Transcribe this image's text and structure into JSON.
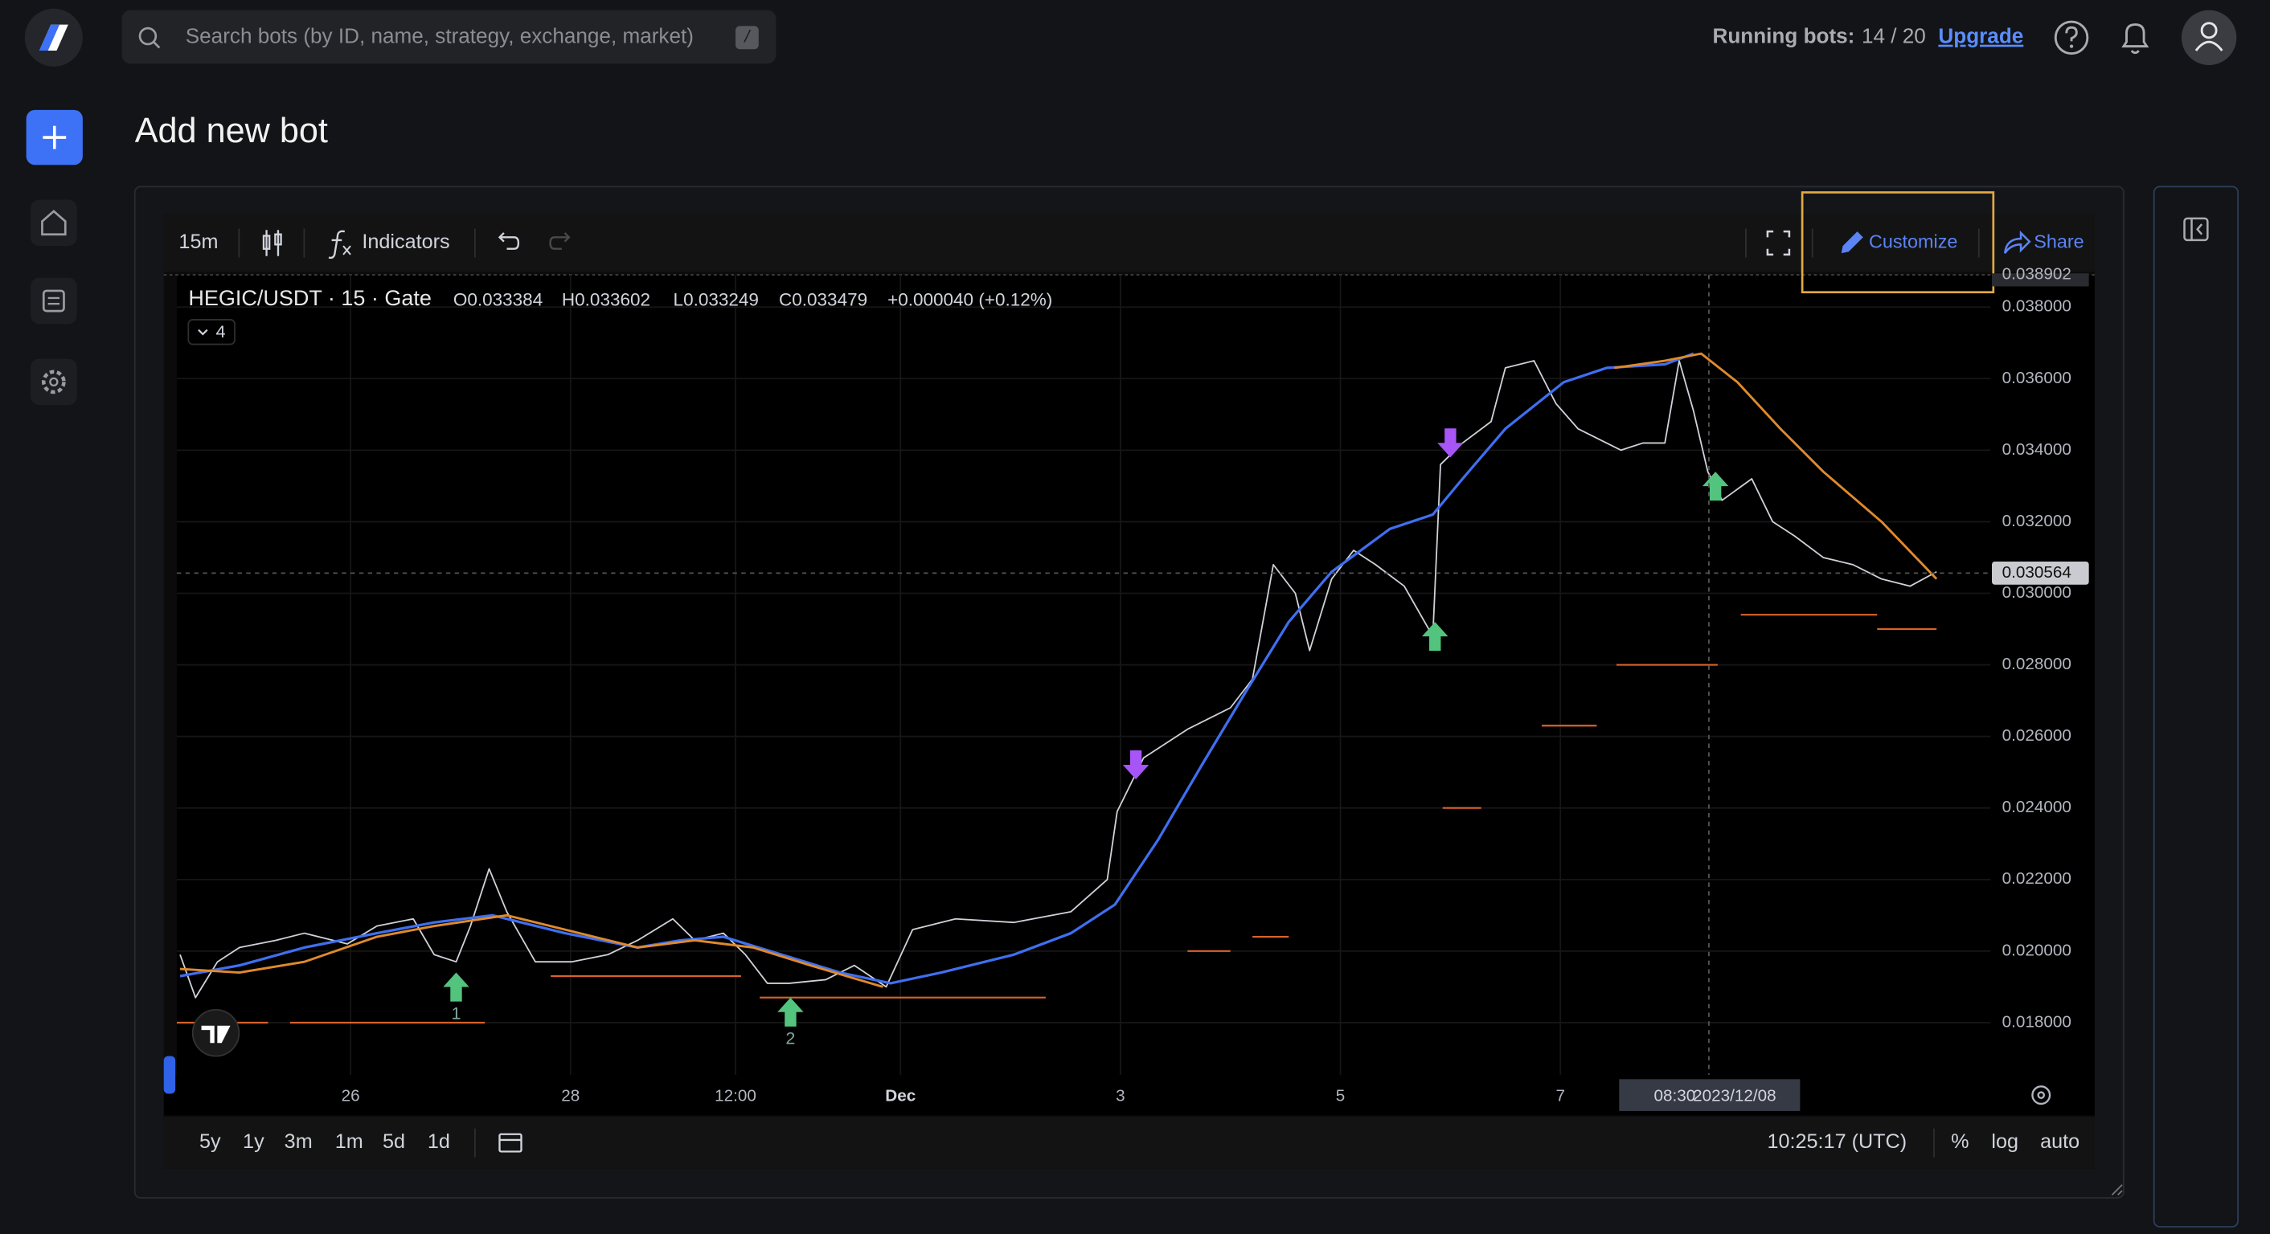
{
  "header": {
    "search_placeholder": "Search bots (by ID, name, strategy, exchange, market)",
    "search_shortcut": "/",
    "running_label": "Running bots:",
    "running_value": "14 / 20",
    "upgrade": "Upgrade"
  },
  "page_title": "Add new bot",
  "toolbar": {
    "interval": "15m",
    "indicators": "Indicators",
    "customize": "Customize",
    "share": "Share"
  },
  "legend": {
    "symbol": "HEGIC/USDT · 15 · Gate",
    "open": "O0.033384",
    "high": "H0.033602",
    "low": "L0.033249",
    "close": "C0.033479",
    "change": "+0.000040 (+0.12%)",
    "indicator_count": "4"
  },
  "chart": {
    "type": "line",
    "grid": true,
    "xlim": [
      -1.58,
      14.91
    ],
    "ylim": [
      0.01654,
      0.0389
    ],
    "xticks": [
      {
        "value": 0,
        "label": "26"
      },
      {
        "value": 2,
        "label": "28"
      },
      {
        "value": 3.5,
        "label": "12:00"
      },
      {
        "value": 5,
        "label": "Dec"
      },
      {
        "value": 7,
        "label": "3"
      },
      {
        "value": 9,
        "label": "5"
      },
      {
        "value": 11,
        "label": "7"
      }
    ],
    "yticks": [
      {
        "value": 0.018,
        "label": "0.018000"
      },
      {
        "value": 0.02,
        "label": "0.020000"
      },
      {
        "value": 0.022,
        "label": "0.022000"
      },
      {
        "value": 0.024,
        "label": "0.024000"
      },
      {
        "value": 0.026,
        "label": "0.026000"
      },
      {
        "value": 0.028,
        "label": "0.028000"
      },
      {
        "value": 0.03,
        "label": "0.030000"
      },
      {
        "value": 0.032,
        "label": "0.032000"
      },
      {
        "value": 0.034,
        "label": "0.034000"
      },
      {
        "value": 0.036,
        "label": "0.036000"
      },
      {
        "value": 0.038,
        "label": "0.038000"
      }
    ],
    "top_price": 0.038902,
    "crosshair": {
      "x": 12.35,
      "time_label": "08:30",
      "date_label": "2023/12/08",
      "price": 0.030564
    },
    "series": [
      {
        "color": "#cfd2d8",
        "x": [
          -1.55,
          -1.41,
          -1.21,
          -1.01,
          -0.68,
          -0.42,
          -0.03,
          0.24,
          0.57,
          0.76,
          0.96,
          1.09,
          1.26,
          1.42,
          1.68,
          2.01,
          2.34,
          2.61,
          2.93,
          3.13,
          3.39,
          3.59,
          3.79,
          3.99,
          4.32,
          4.58,
          4.87,
          5.11,
          5.5,
          6.03,
          6.55,
          6.88,
          6.97,
          7.21,
          7.61,
          8.0,
          8.2,
          8.39,
          8.59,
          8.72,
          8.92,
          9.12,
          9.32,
          9.58,
          9.84,
          9.91,
          10.11,
          10.37,
          10.5,
          10.76,
          10.96,
          11.16,
          11.29,
          11.55,
          11.75,
          11.95,
          12.08,
          12.21,
          12.34,
          12.47,
          12.74,
          12.93,
          13.13,
          13.39,
          13.66,
          13.92,
          14.18,
          14.42
        ],
        "values": [
          0.0199,
          0.0187,
          0.0197,
          0.0201,
          0.0203,
          0.0205,
          0.0202,
          0.0207,
          0.0209,
          0.0199,
          0.0197,
          0.0207,
          0.0223,
          0.0211,
          0.0197,
          0.0197,
          0.0199,
          0.0203,
          0.0209,
          0.0203,
          0.0205,
          0.0199,
          0.0191,
          0.0191,
          0.0192,
          0.0196,
          0.019,
          0.0206,
          0.0209,
          0.0208,
          0.0211,
          0.022,
          0.0239,
          0.0254,
          0.0262,
          0.0268,
          0.0276,
          0.0308,
          0.03,
          0.0284,
          0.0304,
          0.0312,
          0.0308,
          0.0302,
          0.0288,
          0.0336,
          0.0342,
          0.0348,
          0.0363,
          0.0365,
          0.0353,
          0.0346,
          0.0344,
          0.034,
          0.0342,
          0.0342,
          0.0365,
          0.0351,
          0.0334,
          0.0326,
          0.0332,
          0.032,
          0.0316,
          0.031,
          0.0308,
          0.0304,
          0.0302,
          0.0306
        ],
        "width": 1
      },
      {
        "color": "#3f6ff0",
        "x": [
          -1.55,
          -1.01,
          -0.42,
          0.24,
          0.76,
          1.29,
          1.95,
          2.61,
          3.0,
          3.39,
          3.92,
          4.45,
          4.91,
          5.37,
          6.03,
          6.55,
          6.95,
          7.34,
          7.74,
          8.13,
          8.53,
          8.92,
          9.45,
          9.84,
          10.11,
          10.5,
          11.03,
          11.42,
          11.95,
          12.21
        ],
        "values": [
          0.0193,
          0.0196,
          0.0201,
          0.0205,
          0.0208,
          0.021,
          0.0205,
          0.0201,
          0.0203,
          0.0204,
          0.0199,
          0.0194,
          0.0191,
          0.0194,
          0.0199,
          0.0205,
          0.0213,
          0.0231,
          0.0252,
          0.0272,
          0.0292,
          0.0306,
          0.0318,
          0.0322,
          0.0332,
          0.0346,
          0.0359,
          0.0363,
          0.0364,
          0.0367
        ],
        "width": 1.8
      },
      {
        "color": "#e08a2c",
        "x": [
          -1.55,
          -1.01,
          -0.42,
          0.24,
          0.76,
          1.42,
          1.95,
          2.61,
          3.13,
          3.66,
          4.18,
          4.84,
          null,
          11.49,
          11.95,
          12.28,
          12.61,
          13.0,
          13.39,
          13.92,
          14.42
        ],
        "values": [
          0.0195,
          0.0194,
          0.0197,
          0.0204,
          0.0207,
          0.021,
          0.0206,
          0.0201,
          0.0203,
          0.0201,
          0.0196,
          0.019,
          null,
          0.0363,
          0.0365,
          0.0367,
          0.0359,
          0.0346,
          0.0334,
          0.032,
          0.0304
        ],
        "width": 1.6
      }
    ],
    "levels": {
      "color": "#d9622b",
      "x_start": [
        -1.58,
        -0.55,
        1.82,
        3.72,
        7.61,
        8.2,
        9.93,
        10.83,
        11.51,
        12.64,
        13.88
      ],
      "x_end": [
        -0.75,
        1.22,
        3.55,
        6.32,
        8.0,
        8.53,
        10.28,
        11.33,
        12.43,
        13.88,
        14.42
      ],
      "values": [
        0.018,
        0.018,
        0.0193,
        0.0187,
        0.02,
        0.0204,
        0.024,
        0.0263,
        0.028,
        0.0294,
        0.029
      ]
    },
    "buy_signals": {
      "color": "#52c47e",
      "x": [
        0.96,
        4.0,
        9.86,
        12.41
      ],
      "values": [
        0.0194,
        0.0187,
        0.0292,
        0.0334
      ],
      "labels": [
        "1",
        "2",
        null,
        null
      ]
    },
    "sell_signals": {
      "color": "#a855f7",
      "x": [
        7.14,
        10.0
      ],
      "values": [
        0.0248,
        0.0338
      ]
    }
  },
  "bottom_bar": {
    "ranges": [
      "5y",
      "1y",
      "3m",
      "1m",
      "5d",
      "1d"
    ],
    "clock": "10:25:17 (UTC)",
    "percent": "%",
    "log": "log",
    "auto": "auto"
  }
}
